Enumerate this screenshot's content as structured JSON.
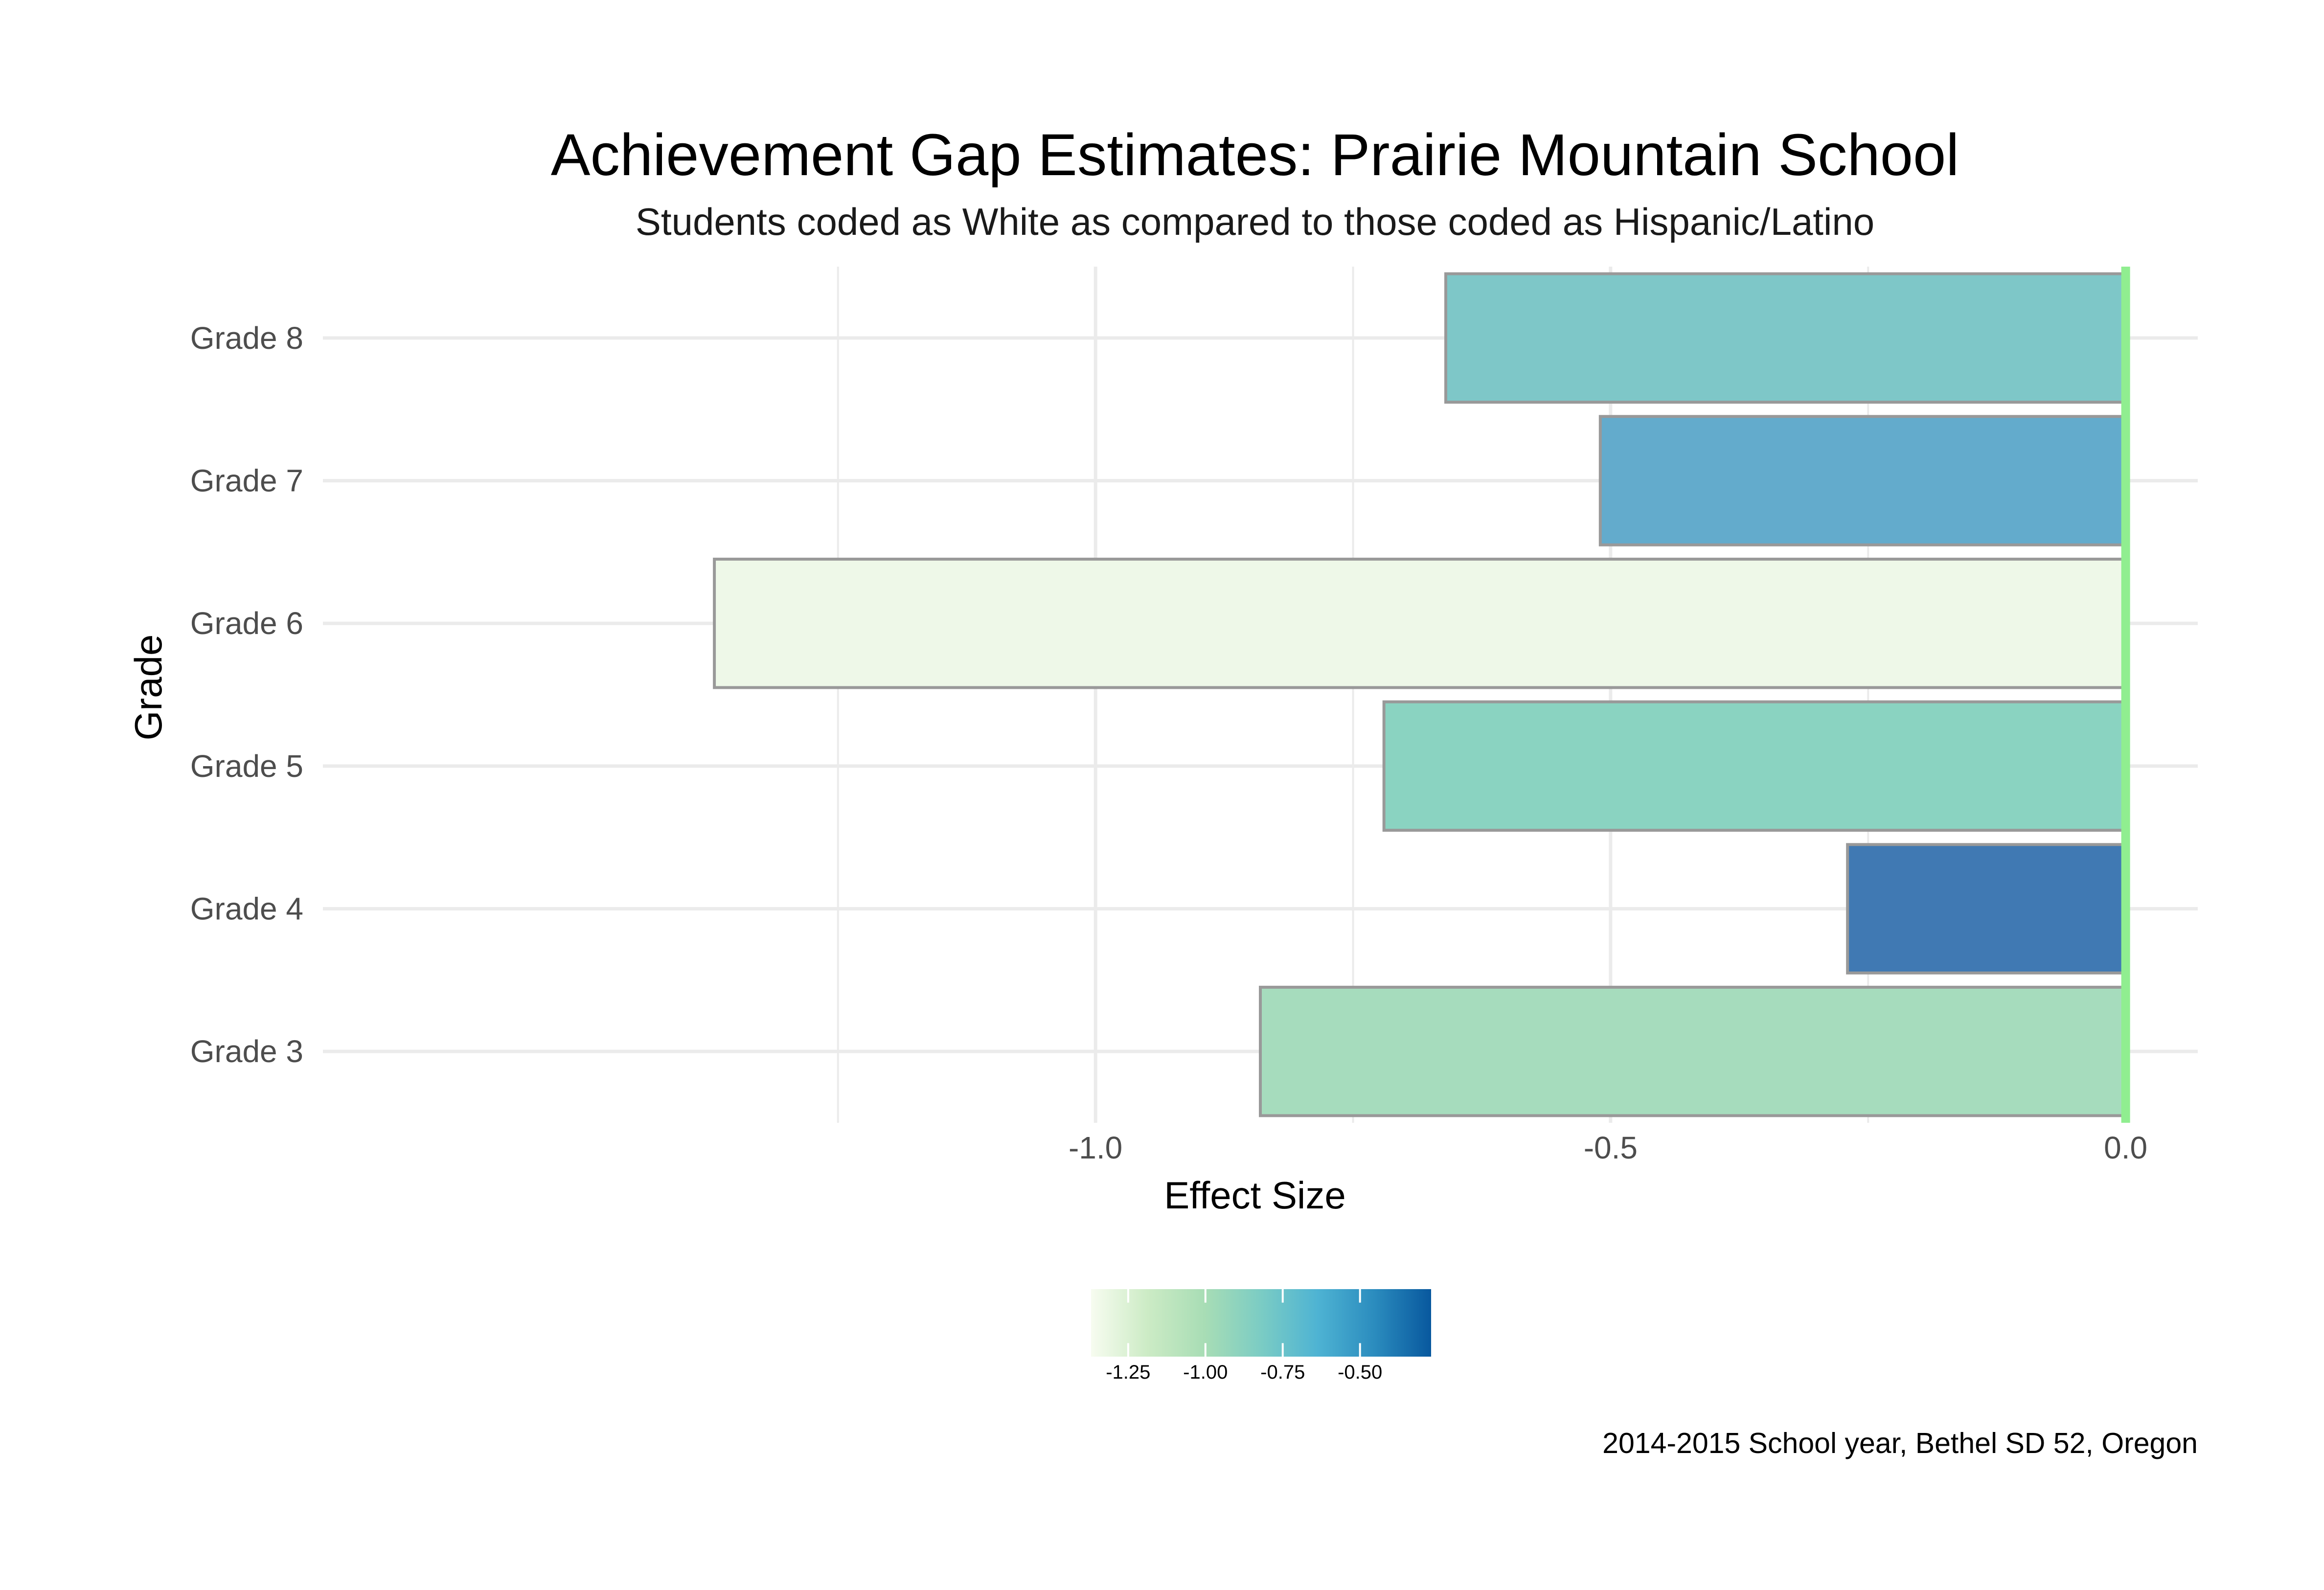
{
  "chart_data": {
    "type": "bar",
    "orientation": "horizontal",
    "title": "Achievement Gap Estimates: Prairie Mountain School",
    "subtitle": "Students coded as White as compared to those coded as Hispanic/Latino",
    "xlabel": "Effect Size",
    "ylabel": "Grade",
    "caption": "2014-2015 School year, Bethel SD 52, Oregon",
    "categories": [
      "Grade 3",
      "Grade 4",
      "Grade 5",
      "Grade 6",
      "Grade 7",
      "Grade 8"
    ],
    "values": [
      -0.84,
      -0.27,
      -0.72,
      -1.37,
      -0.51,
      -0.66
    ],
    "bar_colors": [
      "#a6dcbd",
      "#4079b3",
      "#8ad3c1",
      "#eef8e8",
      "#63abcc",
      "#7ec7c8"
    ],
    "xlim": [
      -1.75,
      0.07
    ],
    "x_ticks": [
      -1.0,
      -0.5,
      0.0
    ],
    "x_tick_labels": [
      "-1.0",
      "-0.5",
      "0.0"
    ],
    "grid": true,
    "reference_line": {
      "x": 0,
      "color": "#90ee90"
    },
    "legend": {
      "position": "bottom",
      "type": "colorbar",
      "range": [
        -1.37,
        -0.27
      ],
      "ticks": [
        -1.25,
        -1.0,
        -0.75,
        -0.5
      ],
      "tick_labels": [
        "-1.25",
        "-1.00",
        "-0.75",
        "-0.50"
      ],
      "colors": [
        "#f7fcf0",
        "#ccebc5",
        "#a8ddb5",
        "#7bccc4",
        "#4eb3d3",
        "#2b8cbe",
        "#08589e"
      ]
    }
  }
}
